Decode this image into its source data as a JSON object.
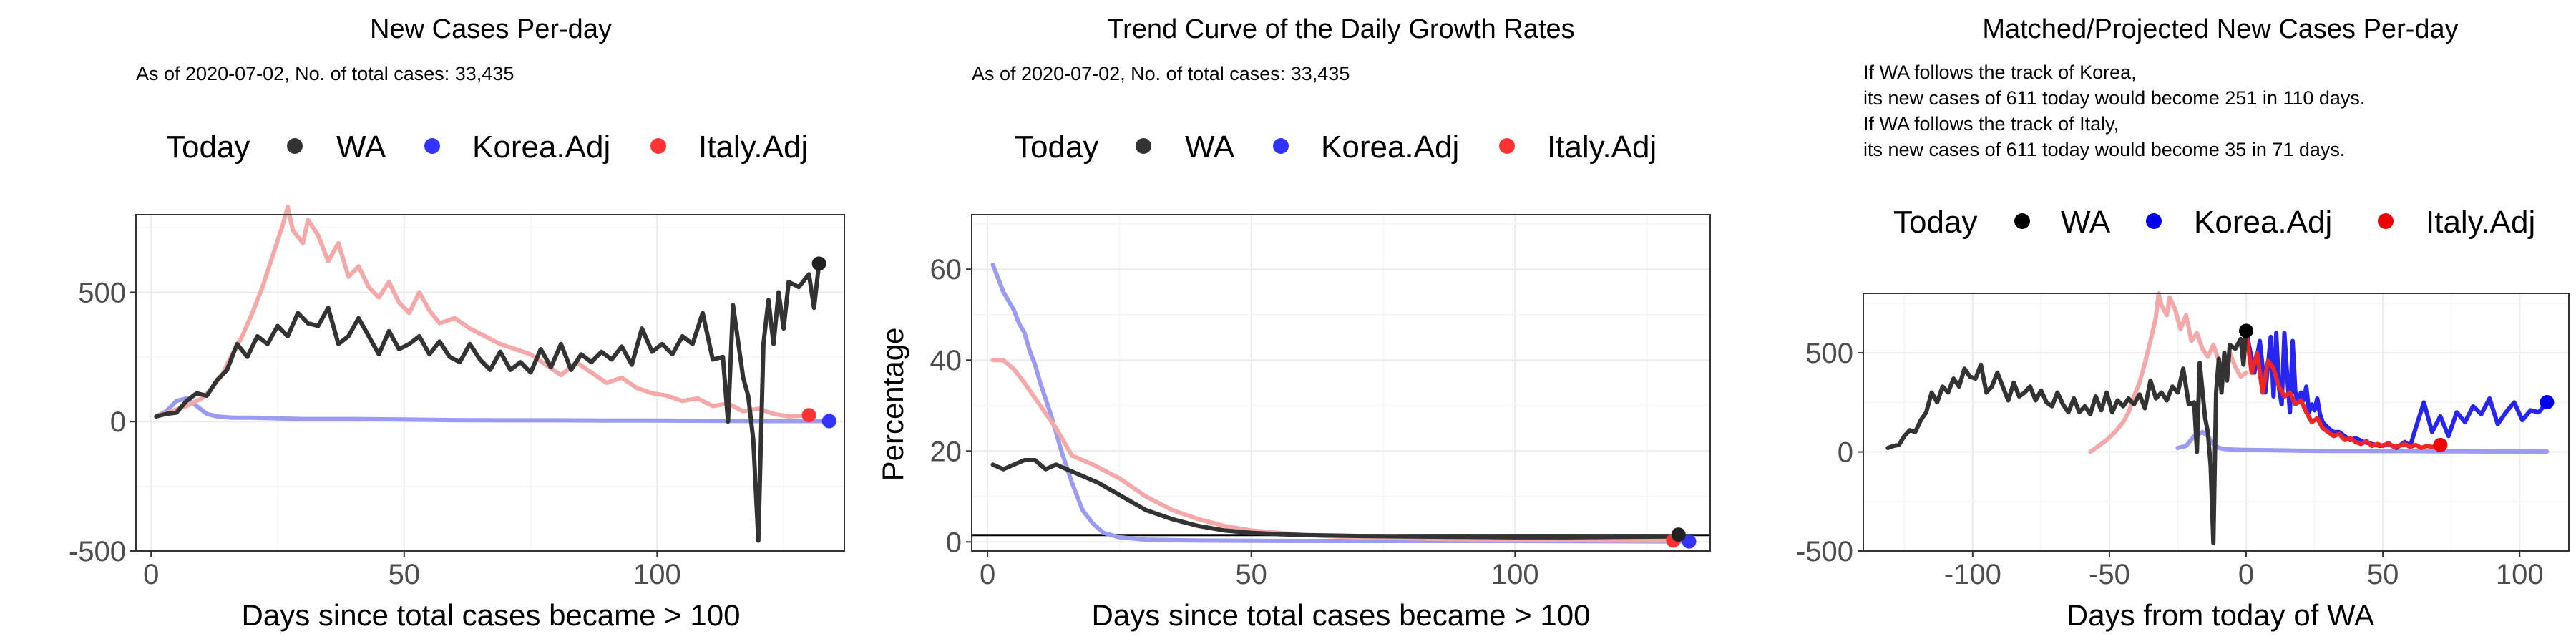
{
  "charts": [
    {
      "title": "New Cases Per-day",
      "subtitle": [
        "As of 2020-07-02, No. of total cases: 33,435"
      ],
      "xlabel": "Days since total cases became > 100",
      "ylabel": "",
      "legend": {
        "title": "Today",
        "items": [
          "WA",
          "Korea.Adj",
          "Italy.Adj"
        ]
      }
    },
    {
      "title": "Trend Curve of the Daily Growth Rates",
      "subtitle": [
        "As of 2020-07-02, No. of total cases: 33,435"
      ],
      "xlabel": "Days since total cases became > 100",
      "ylabel": "Percentage",
      "legend": {
        "title": "Today",
        "items": [
          "WA",
          "Korea.Adj",
          "Italy.Adj"
        ]
      }
    },
    {
      "title": "Matched/Projected New Cases Per-day",
      "subtitle": [
        "If WA follows the track of Korea,",
        "its new cases of 611 today would become 251 in 110 days.",
        "If WA follows the track of Italy,",
        "its new cases of 611 today would become 35 in 71 days."
      ],
      "xlabel": "Days from today of WA",
      "ylabel": "",
      "legend": {
        "title": "Today",
        "items": [
          "WA",
          "Korea.Adj",
          "Italy.Adj"
        ]
      }
    }
  ],
  "colors": {
    "wa": "#333333",
    "korea": "#9b9bf2",
    "italy": "#f4a8a8",
    "korea_solid": "#2626f0",
    "italy_solid": "#f02626"
  },
  "chart_data": [
    {
      "type": "line",
      "title": "New Cases Per-day",
      "xlabel": "Days since total cases became > 100",
      "xlim": [
        -3,
        137
      ],
      "ylim": [
        -500,
        800
      ],
      "xticks": [
        0,
        50,
        100
      ],
      "yticks": [
        -500,
        0,
        500
      ],
      "grid": true,
      "legend_position": "top",
      "series": [
        {
          "name": "Korea.Adj",
          "x": [
            1,
            3,
            5,
            7,
            9,
            11,
            13,
            16,
            20,
            30,
            40,
            50,
            60,
            70,
            80,
            90,
            100,
            110,
            120,
            130,
            134
          ],
          "y": [
            20,
            40,
            80,
            90,
            60,
            30,
            20,
            15,
            15,
            10,
            10,
            8,
            6,
            5,
            5,
            4,
            4,
            3,
            2,
            2,
            2
          ]
        },
        {
          "name": "Italy.Adj",
          "x": [
            1,
            4,
            7,
            10,
            12,
            14,
            16,
            18,
            20,
            22,
            24,
            26,
            27,
            28,
            30,
            31,
            33,
            35,
            37,
            39,
            41,
            43,
            45,
            47,
            49,
            51,
            53,
            55,
            57,
            60,
            63,
            66,
            69,
            72,
            75,
            78,
            81,
            84,
            87,
            90,
            93,
            96,
            99,
            102,
            105,
            108,
            111,
            114,
            117,
            120,
            123,
            126,
            130
          ],
          "y": [
            20,
            40,
            60,
            90,
            130,
            180,
            260,
            330,
            420,
            520,
            640,
            760,
            830,
            740,
            690,
            780,
            720,
            620,
            690,
            560,
            600,
            520,
            480,
            540,
            460,
            420,
            500,
            430,
            380,
            400,
            360,
            330,
            300,
            280,
            260,
            220,
            180,
            230,
            190,
            150,
            170,
            130,
            110,
            100,
            80,
            90,
            60,
            70,
            40,
            50,
            30,
            20,
            25
          ]
        },
        {
          "name": "WA",
          "x": [
            1,
            3,
            5,
            7,
            9,
            11,
            13,
            15,
            17,
            19,
            21,
            23,
            25,
            27,
            29,
            31,
            33,
            35,
            37,
            39,
            41,
            43,
            45,
            47,
            49,
            51,
            53,
            55,
            57,
            59,
            61,
            63,
            65,
            67,
            69,
            71,
            73,
            75,
            77,
            79,
            81,
            83,
            85,
            87,
            89,
            91,
            93,
            95,
            97,
            99,
            101,
            103,
            105,
            107,
            109,
            111,
            113,
            114,
            115,
            116,
            117,
            118,
            119,
            120,
            121,
            122,
            123,
            124,
            125,
            126,
            128,
            130,
            131,
            132
          ],
          "y": [
            20,
            30,
            35,
            80,
            110,
            100,
            160,
            200,
            300,
            250,
            330,
            300,
            370,
            330,
            420,
            380,
            370,
            440,
            300,
            330,
            400,
            330,
            260,
            350,
            280,
            300,
            330,
            260,
            310,
            250,
            230,
            300,
            240,
            200,
            270,
            200,
            230,
            190,
            280,
            210,
            300,
            200,
            260,
            230,
            270,
            240,
            290,
            220,
            360,
            270,
            300,
            260,
            330,
            300,
            420,
            240,
            250,
            0,
            450,
            310,
            170,
            100,
            -70,
            -460,
            300,
            470,
            300,
            500,
            360,
            540,
            520,
            570,
            440,
            611
          ]
        }
      ]
    },
    {
      "type": "line",
      "title": "Trend Curve of the Daily Growth Rates",
      "xlabel": "Days since total cases became > 100",
      "ylabel": "Percentage",
      "xlim": [
        -3,
        137
      ],
      "ylim": [
        -2,
        72
      ],
      "xticks": [
        0,
        50,
        100
      ],
      "yticks": [
        0,
        20,
        40,
        60
      ],
      "hline": 1.5,
      "grid": true,
      "legend_position": "top",
      "series": [
        {
          "name": "Korea.Adj",
          "x": [
            1,
            2,
            3,
            4,
            5,
            6,
            7,
            8,
            9,
            10,
            12,
            14,
            16,
            18,
            20,
            22,
            25,
            30,
            40,
            60,
            100,
            130,
            133
          ],
          "y": [
            61,
            58,
            55,
            53,
            51,
            48,
            46,
            42,
            39,
            35,
            28,
            20,
            13,
            7,
            4,
            2,
            1,
            0.5,
            0.3,
            0.2,
            0.2,
            0.1,
            0.1
          ]
        },
        {
          "name": "Italy.Adj",
          "x": [
            1,
            3,
            5,
            7,
            10,
            13,
            16,
            20,
            25,
            30,
            35,
            40,
            45,
            50,
            55,
            60,
            70,
            80,
            90,
            100,
            110,
            120,
            130
          ],
          "y": [
            40,
            40,
            38,
            35,
            30,
            25,
            19,
            17,
            14,
            10,
            7,
            5,
            3.5,
            2.5,
            2,
            1.5,
            1,
            0.8,
            0.6,
            0.5,
            0.4,
            0.3,
            0.3
          ]
        },
        {
          "name": "WA",
          "x": [
            1,
            3,
            5,
            7,
            9,
            11,
            13,
            15,
            17,
            19,
            21,
            24,
            27,
            30,
            35,
            40,
            45,
            50,
            55,
            60,
            70,
            80,
            90,
            100,
            110,
            120,
            130,
            131
          ],
          "y": [
            17,
            16,
            17,
            18,
            18,
            16,
            17,
            16,
            15,
            14,
            13,
            11,
            9,
            7,
            5,
            3.5,
            2.5,
            2,
            1.7,
            1.5,
            1.3,
            1.2,
            1.1,
            1.0,
            1.0,
            1.1,
            1.2,
            1.6
          ]
        }
      ]
    },
    {
      "type": "line",
      "title": "Matched/Projected New Cases Per-day",
      "xlabel": "Days from today of WA",
      "xlim": [
        -140,
        118
      ],
      "ylim": [
        -500,
        800
      ],
      "xticks": [
        -100,
        -50,
        0,
        50,
        100
      ],
      "yticks": [
        -500,
        0,
        500
      ],
      "grid": true,
      "legend_position": "top",
      "series": [
        {
          "name": "Korea.Adj",
          "x": [
            -25,
            -22,
            -19,
            -16,
            -14,
            -12,
            -10,
            -8,
            -5,
            0,
            10,
            20,
            30,
            40,
            50,
            60,
            70,
            80,
            90,
            100,
            110
          ],
          "y": [
            20,
            30,
            80,
            100,
            80,
            40,
            20,
            15,
            12,
            10,
            8,
            6,
            5,
            5,
            4,
            4,
            3,
            3,
            2,
            2,
            2
          ]
        },
        {
          "name": "Italy.Adj",
          "x": [
            -57,
            -54,
            -51,
            -48,
            -45,
            -43,
            -41,
            -39,
            -37,
            -35,
            -33,
            -32,
            -31,
            -29,
            -28,
            -26,
            -24,
            -22,
            -20,
            -18,
            -16,
            -14,
            -12,
            -10,
            -8,
            -6,
            -4,
            -2,
            0
          ],
          "y": [
            0,
            30,
            60,
            100,
            150,
            200,
            280,
            350,
            450,
            560,
            680,
            800,
            740,
            690,
            780,
            720,
            620,
            690,
            560,
            600,
            520,
            480,
            540,
            460,
            420,
            500,
            430,
            380,
            400
          ]
        },
        {
          "name": "Korea.Adj (projected)",
          "solid": true,
          "x": [
            0,
            3,
            5,
            7,
            9,
            10,
            11,
            12,
            13,
            14,
            15,
            16,
            17,
            18,
            19,
            20,
            21,
            22,
            23,
            24,
            25,
            26,
            27,
            28,
            30,
            32,
            34,
            36,
            38,
            40,
            43,
            46,
            49,
            52,
            55,
            58,
            60,
            62,
            65,
            68,
            71,
            74,
            77,
            80,
            83,
            86,
            89,
            92,
            95,
            98,
            101,
            104,
            107,
            110
          ],
          "y": [
            611,
            400,
            560,
            300,
            580,
            280,
            600,
            320,
            240,
            600,
            380,
            200,
            560,
            300,
            250,
            300,
            260,
            330,
            200,
            240,
            210,
            270,
            190,
            150,
            120,
            100,
            100,
            80,
            60,
            70,
            50,
            40,
            30,
            40,
            20,
            50,
            30,
            120,
            250,
            100,
            180,
            80,
            200,
            150,
            230,
            190,
            270,
            140,
            200,
            250,
            160,
            210,
            200,
            251
          ]
        },
        {
          "name": "Italy.Adj (projected)",
          "solid": true,
          "x": [
            0,
            2,
            4,
            6,
            8,
            10,
            12,
            14,
            16,
            18,
            20,
            22,
            24,
            26,
            28,
            30,
            32,
            34,
            36,
            38,
            40,
            42,
            44,
            46,
            48,
            50,
            52,
            54,
            56,
            58,
            60,
            62,
            64,
            66,
            68,
            70,
            71
          ],
          "y": [
            611,
            400,
            500,
            300,
            460,
            420,
            330,
            280,
            300,
            240,
            260,
            200,
            150,
            170,
            120,
            100,
            80,
            90,
            60,
            70,
            50,
            40,
            55,
            30,
            40,
            30,
            45,
            25,
            30,
            40,
            25,
            35,
            20,
            30,
            25,
            30,
            35
          ]
        },
        {
          "name": "WA",
          "x": [
            -131,
            -129,
            -127,
            -125,
            -123,
            -121,
            -119,
            -117,
            -115,
            -113,
            -111,
            -109,
            -107,
            -105,
            -103,
            -101,
            -99,
            -97,
            -95,
            -93,
            -91,
            -89,
            -87,
            -85,
            -83,
            -81,
            -79,
            -77,
            -75,
            -73,
            -71,
            -69,
            -67,
            -65,
            -63,
            -61,
            -59,
            -57,
            -55,
            -53,
            -51,
            -49,
            -47,
            -45,
            -43,
            -41,
            -39,
            -37,
            -35,
            -33,
            -31,
            -29,
            -27,
            -25,
            -23,
            -21,
            -19,
            -18,
            -17,
            -16,
            -15,
            -14,
            -13,
            -12,
            -11,
            -10,
            -9,
            -8,
            -7,
            -6,
            -4,
            -2,
            -1,
            0
          ],
          "y": [
            20,
            30,
            35,
            80,
            110,
            100,
            160,
            200,
            300,
            250,
            330,
            300,
            370,
            330,
            420,
            380,
            370,
            440,
            300,
            330,
            400,
            330,
            260,
            350,
            280,
            300,
            330,
            260,
            310,
            250,
            230,
            300,
            240,
            200,
            270,
            200,
            230,
            190,
            280,
            210,
            300,
            200,
            260,
            230,
            270,
            240,
            290,
            220,
            360,
            270,
            300,
            260,
            330,
            300,
            420,
            240,
            250,
            0,
            450,
            310,
            170,
            100,
            -70,
            -460,
            300,
            470,
            300,
            500,
            360,
            540,
            520,
            570,
            440,
            611
          ]
        }
      ]
    }
  ]
}
